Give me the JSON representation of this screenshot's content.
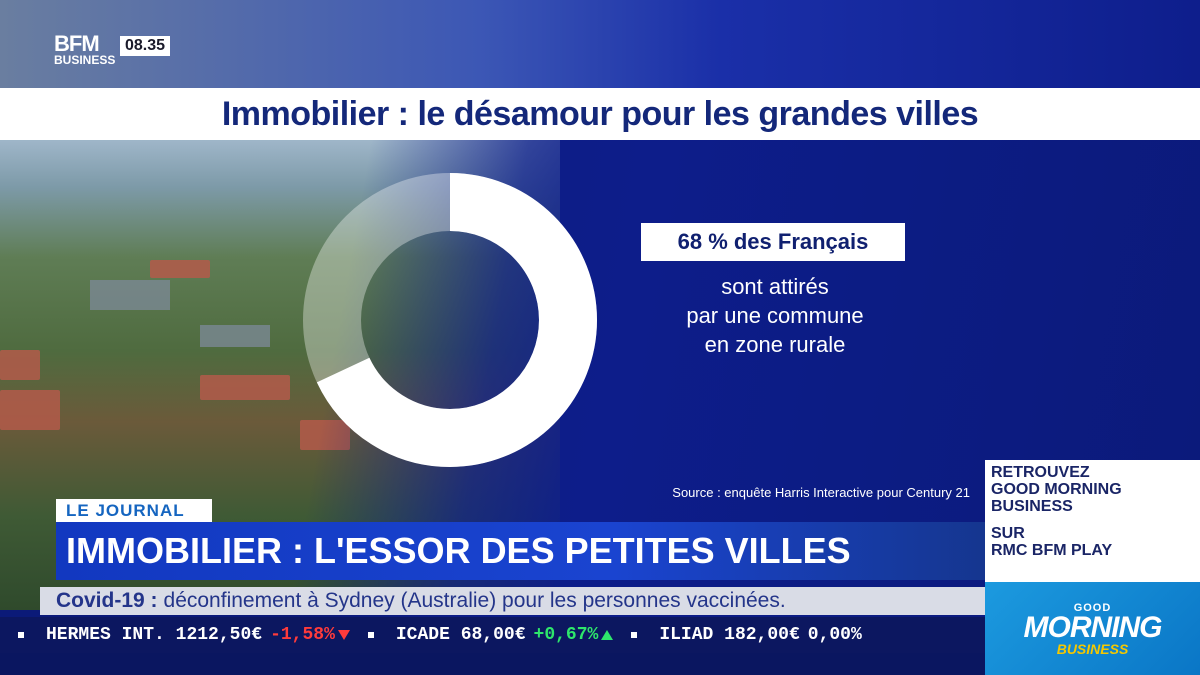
{
  "channel": {
    "logo_top": "BFM",
    "logo_bottom": "BUSINESS",
    "time": "08.35"
  },
  "title": "Immobilier : le désamour pour les grandes villes",
  "stat": {
    "highlight": "68 % des Français",
    "line1": "sont attirés",
    "line2": "par une commune",
    "line3": "en zone rurale",
    "percent": 68,
    "source": "Source : enquête Harris Interactive pour Century 21"
  },
  "promo": {
    "l1": "RETROUVEZ",
    "l2": "GOOD MORNING",
    "l3": "BUSINESS",
    "l4": "SUR",
    "l5": "RMC BFM PLAY"
  },
  "show_logo": {
    "g1": "GOOD",
    "g2": "MORNING",
    "g3": "BUSINESS"
  },
  "segment_tag": "LE JOURNAL",
  "headline": "IMMOBILIER : L'ESSOR DES PETITES VILLES",
  "subline": {
    "key": "Covid-19 :",
    "text": "déconfinement à Sydney (Australie) pour les personnes vaccinées."
  },
  "ticker": [
    {
      "name": "HERMES INT.",
      "price": "1212,50€",
      "change": "-1,58%",
      "dir": "down"
    },
    {
      "name": "ICADE",
      "price": "68,00€",
      "change": "+0,67%",
      "dir": "up"
    },
    {
      "name": "ILIAD",
      "price": "182,00€",
      "change": "0,00%",
      "dir": "flat"
    }
  ],
  "colors": {
    "primary": "#0d1d8a",
    "accent": "#1565c0",
    "negative": "#ff3b3b",
    "positive": "#2ee66b"
  }
}
